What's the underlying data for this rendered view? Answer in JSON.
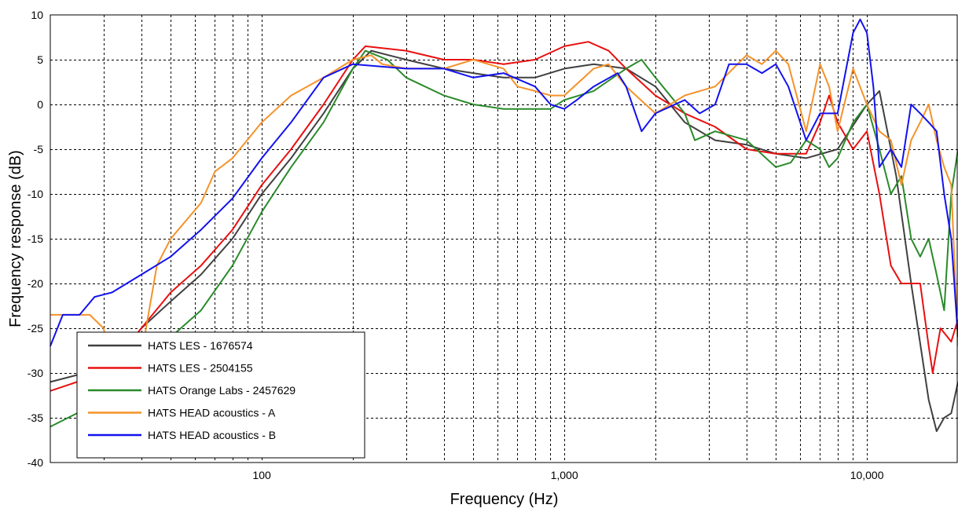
{
  "chart_data": {
    "type": "line",
    "xlabel": "Frequency (Hz)",
    "ylabel": "Frequency response (dB)",
    "x_scale": "log",
    "xlim": [
      20,
      20000
    ],
    "ylim": [
      -40,
      10
    ],
    "grid": true,
    "legend_position": "bottom-left",
    "x_ticks": [
      {
        "value": 100,
        "label": "100"
      },
      {
        "value": 1000,
        "label": "1,000"
      },
      {
        "value": 10000,
        "label": "10,000"
      }
    ],
    "y_ticks": [
      {
        "value": 10,
        "label": "10"
      },
      {
        "value": 5,
        "label": "5"
      },
      {
        "value": 0,
        "label": "0"
      },
      {
        "value": -5,
        "label": "-5"
      },
      {
        "value": -10,
        "label": "-10"
      },
      {
        "value": -15,
        "label": "-15"
      },
      {
        "value": -20,
        "label": "-20"
      },
      {
        "value": -25,
        "label": "-25"
      },
      {
        "value": -30,
        "label": "-30"
      },
      {
        "value": -35,
        "label": "-35"
      },
      {
        "value": -40,
        "label": "-40"
      }
    ],
    "series": [
      {
        "name": "HATS LES - 1676574",
        "color": "#404040",
        "points": [
          [
            20,
            -31
          ],
          [
            26,
            -30
          ],
          [
            32,
            -29
          ],
          [
            40,
            -25
          ],
          [
            50,
            -22
          ],
          [
            63,
            -19
          ],
          [
            80,
            -15
          ],
          [
            100,
            -10
          ],
          [
            125,
            -6
          ],
          [
            160,
            -1
          ],
          [
            200,
            4
          ],
          [
            230,
            6
          ],
          [
            300,
            5
          ],
          [
            400,
            4
          ],
          [
            500,
            3.5
          ],
          [
            630,
            3
          ],
          [
            800,
            3
          ],
          [
            1000,
            4
          ],
          [
            1250,
            4.5
          ],
          [
            1600,
            4
          ],
          [
            2000,
            2
          ],
          [
            2500,
            -2
          ],
          [
            3150,
            -4
          ],
          [
            4000,
            -4.5
          ],
          [
            5000,
            -5.5
          ],
          [
            6300,
            -6
          ],
          [
            8000,
            -5
          ],
          [
            10000,
            0
          ],
          [
            11000,
            1.5
          ],
          [
            12500,
            -8
          ],
          [
            14000,
            -20
          ],
          [
            16000,
            -33
          ],
          [
            17000,
            -36.5
          ],
          [
            18000,
            -35
          ],
          [
            19000,
            -34.5
          ],
          [
            20000,
            -31
          ]
        ]
      },
      {
        "name": "HATS LES - 2504155",
        "color": "#e81010",
        "points": [
          [
            20,
            -32
          ],
          [
            30,
            -30
          ],
          [
            40,
            -25
          ],
          [
            50,
            -21
          ],
          [
            63,
            -18
          ],
          [
            80,
            -14
          ],
          [
            100,
            -9
          ],
          [
            125,
            -5
          ],
          [
            160,
            0
          ],
          [
            200,
            5
          ],
          [
            220,
            6.5
          ],
          [
            300,
            6
          ],
          [
            400,
            5
          ],
          [
            500,
            5
          ],
          [
            630,
            4.5
          ],
          [
            800,
            5
          ],
          [
            1000,
            6.5
          ],
          [
            1200,
            7
          ],
          [
            1400,
            6
          ],
          [
            1600,
            4
          ],
          [
            2000,
            1
          ],
          [
            2500,
            -1
          ],
          [
            3150,
            -2.5
          ],
          [
            4000,
            -5
          ],
          [
            5000,
            -5.5
          ],
          [
            6300,
            -5.5
          ],
          [
            7000,
            -2
          ],
          [
            7500,
            1
          ],
          [
            8000,
            -2
          ],
          [
            9000,
            -5
          ],
          [
            10000,
            -3
          ],
          [
            11000,
            -10
          ],
          [
            12000,
            -18
          ],
          [
            13000,
            -20
          ],
          [
            15000,
            -20
          ],
          [
            16000,
            -27
          ],
          [
            16500,
            -30
          ],
          [
            17500,
            -25
          ],
          [
            19000,
            -26.5
          ],
          [
            20000,
            -24
          ]
        ]
      },
      {
        "name": "HATS Orange Labs - 2457629",
        "color": "#2a8a2a",
        "points": [
          [
            20,
            -36
          ],
          [
            30,
            -33
          ],
          [
            40,
            -30
          ],
          [
            50,
            -26
          ],
          [
            63,
            -23
          ],
          [
            80,
            -18
          ],
          [
            100,
            -12
          ],
          [
            125,
            -7
          ],
          [
            160,
            -2
          ],
          [
            200,
            4
          ],
          [
            220,
            6
          ],
          [
            260,
            5
          ],
          [
            300,
            3
          ],
          [
            400,
            1
          ],
          [
            500,
            0
          ],
          [
            630,
            -0.5
          ],
          [
            800,
            -0.5
          ],
          [
            900,
            -0.5
          ],
          [
            1000,
            0.5
          ],
          [
            1250,
            1.5
          ],
          [
            1600,
            4
          ],
          [
            1800,
            5
          ],
          [
            2000,
            3
          ],
          [
            2500,
            -1
          ],
          [
            2700,
            -4
          ],
          [
            3150,
            -3
          ],
          [
            4000,
            -4
          ],
          [
            5000,
            -7
          ],
          [
            5600,
            -6.5
          ],
          [
            6300,
            -4
          ],
          [
            7000,
            -5
          ],
          [
            7500,
            -7
          ],
          [
            8000,
            -6
          ],
          [
            9000,
            -2
          ],
          [
            10000,
            0
          ],
          [
            11000,
            -5
          ],
          [
            12000,
            -10
          ],
          [
            13000,
            -8
          ],
          [
            14000,
            -15
          ],
          [
            15000,
            -17
          ],
          [
            16000,
            -15
          ],
          [
            17000,
            -19
          ],
          [
            18000,
            -23
          ],
          [
            19000,
            -10
          ],
          [
            20000,
            -5
          ]
        ]
      },
      {
        "name": "HATS HEAD acoustics - A",
        "color": "#f5922a",
        "points": [
          [
            20,
            -23.5
          ],
          [
            27,
            -23.5
          ],
          [
            30,
            -25
          ],
          [
            35,
            -35
          ],
          [
            40,
            -28
          ],
          [
            45,
            -18
          ],
          [
            50,
            -15
          ],
          [
            63,
            -11
          ],
          [
            70,
            -7.5
          ],
          [
            80,
            -6
          ],
          [
            100,
            -2
          ],
          [
            125,
            1
          ],
          [
            160,
            3
          ],
          [
            200,
            5
          ],
          [
            230,
            5.5
          ],
          [
            250,
            4.5
          ],
          [
            300,
            4
          ],
          [
            400,
            4
          ],
          [
            500,
            5
          ],
          [
            630,
            4
          ],
          [
            700,
            2
          ],
          [
            800,
            1.5
          ],
          [
            900,
            1
          ],
          [
            1000,
            1
          ],
          [
            1250,
            4
          ],
          [
            1400,
            4.5
          ],
          [
            1600,
            2
          ],
          [
            2000,
            -1
          ],
          [
            2500,
            1
          ],
          [
            3150,
            2
          ],
          [
            4000,
            5.5
          ],
          [
            4500,
            4.5
          ],
          [
            5000,
            6
          ],
          [
            5500,
            4.5
          ],
          [
            6300,
            -3
          ],
          [
            7000,
            4.5
          ],
          [
            7500,
            2
          ],
          [
            8000,
            -3
          ],
          [
            9000,
            4
          ],
          [
            10000,
            0
          ],
          [
            11000,
            -3
          ],
          [
            12000,
            -4
          ],
          [
            13000,
            -9
          ],
          [
            14000,
            -4
          ],
          [
            15000,
            -2
          ],
          [
            16000,
            0
          ],
          [
            17000,
            -4
          ],
          [
            18000,
            -7
          ],
          [
            19000,
            -9
          ],
          [
            20000,
            -27
          ]
        ]
      },
      {
        "name": "HATS HEAD acoustics - B",
        "color": "#1212ee",
        "points": [
          [
            20,
            -27
          ],
          [
            22,
            -23.5
          ],
          [
            25,
            -23.5
          ],
          [
            28,
            -21.5
          ],
          [
            32,
            -21
          ],
          [
            40,
            -19
          ],
          [
            50,
            -17
          ],
          [
            63,
            -14
          ],
          [
            80,
            -10.5
          ],
          [
            100,
            -6
          ],
          [
            125,
            -2
          ],
          [
            160,
            3
          ],
          [
            200,
            4.5
          ],
          [
            300,
            4
          ],
          [
            400,
            4
          ],
          [
            500,
            3
          ],
          [
            630,
            3.5
          ],
          [
            800,
            2
          ],
          [
            900,
            0
          ],
          [
            1000,
            -0.5
          ],
          [
            1100,
            0.5
          ],
          [
            1250,
            2
          ],
          [
            1500,
            3.5
          ],
          [
            1600,
            2
          ],
          [
            1800,
            -3
          ],
          [
            2000,
            -1
          ],
          [
            2500,
            0.5
          ],
          [
            2800,
            -1
          ],
          [
            3150,
            0
          ],
          [
            3500,
            4.5
          ],
          [
            4000,
            4.5
          ],
          [
            4500,
            3.5
          ],
          [
            5000,
            4.5
          ],
          [
            5500,
            2
          ],
          [
            6300,
            -4
          ],
          [
            7000,
            -1
          ],
          [
            8000,
            -1
          ],
          [
            9000,
            8
          ],
          [
            9500,
            9.5
          ],
          [
            10000,
            8
          ],
          [
            10500,
            2
          ],
          [
            11000,
            -7
          ],
          [
            12000,
            -5
          ],
          [
            13000,
            -7
          ],
          [
            14000,
            0
          ],
          [
            15000,
            -1
          ],
          [
            16000,
            -2
          ],
          [
            17000,
            -3
          ],
          [
            18000,
            -10
          ],
          [
            19000,
            -15
          ],
          [
            20000,
            -26
          ]
        ]
      }
    ]
  }
}
